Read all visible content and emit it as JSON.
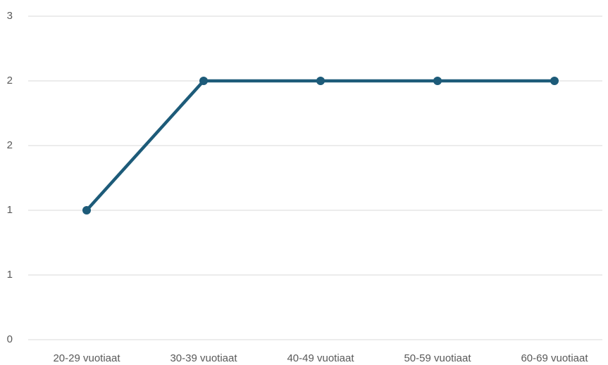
{
  "chart_data": {
    "type": "line",
    "categories": [
      "20-29 vuotiaat",
      "30-39 vuotiaat",
      "40-49 vuotiaat",
      "50-59 vuotiaat",
      "60-69 vuotiaat"
    ],
    "series": [
      {
        "color": "#1d5b79",
        "values": [
          1.2,
          2.4,
          2.4,
          2.4,
          2.4
        ]
      }
    ],
    "ylim": [
      0,
      3
    ],
    "yticks": [
      0,
      {
        "value": 0.6,
        "label": "1"
      },
      {
        "value": 1.2,
        "label": "1"
      },
      {
        "value": 1.8,
        "label": "2"
      },
      {
        "value": 2.4,
        "label": "2"
      },
      3
    ],
    "grid": true
  }
}
